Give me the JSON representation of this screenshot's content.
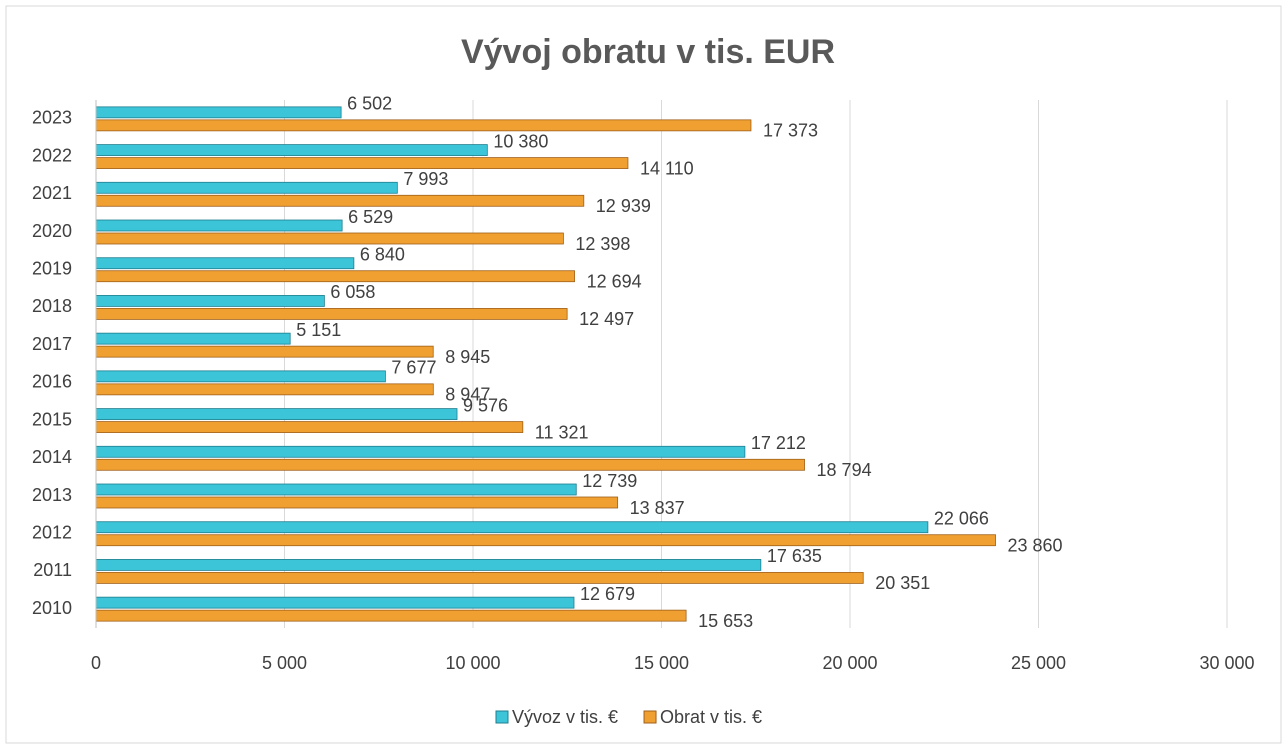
{
  "chart_data": {
    "type": "barh",
    "title": "Vývoj obratu v tis. EUR",
    "categories": [
      "2010",
      "2011",
      "2012",
      "2013",
      "2014",
      "2015",
      "2016",
      "2017",
      "2018",
      "2019",
      "2020",
      "2021",
      "2022",
      "2023"
    ],
    "series": [
      {
        "name": "Vývoz v tis. €",
        "color": "#3cc4d8",
        "values": [
          12679,
          17635,
          22066,
          12739,
          17212,
          9576,
          7677,
          5151,
          6058,
          6840,
          6529,
          7993,
          10380,
          6502
        ],
        "value_labels": [
          "12 679",
          "17 635",
          "22 066",
          "12 739",
          "17 212",
          "9 576",
          "7 677",
          "5 151",
          "6 058",
          "6 840",
          "6 529",
          "7 993",
          "10 380",
          "6 502"
        ]
      },
      {
        "name": "Obrat v tis. €",
        "color": "#f0a030",
        "values": [
          15653,
          20351,
          23860,
          13837,
          18794,
          11321,
          8947,
          8945,
          12497,
          12694,
          12398,
          12939,
          14110,
          17373
        ],
        "value_labels": [
          "15 653",
          "20 351",
          "23 860",
          "13 837",
          "18 794",
          "11 321",
          "8 947",
          "8 945",
          "12 497",
          "12 694",
          "12 398",
          "12 939",
          "14 110",
          "17 373"
        ]
      }
    ],
    "xlim": [
      0,
      30000
    ],
    "xticks": [
      0,
      {
        "value": 5000,
        "label": "5 000"
      },
      {
        "value": 10000,
        "label": "10 000"
      },
      {
        "value": 15000,
        "label": "15 000"
      },
      {
        "value": 20000,
        "label": "20 000"
      },
      {
        "value": 25000,
        "label": "25 000"
      },
      {
        "value": 30000,
        "label": "30 000"
      }
    ],
    "grid": true,
    "legend": "bottom"
  }
}
